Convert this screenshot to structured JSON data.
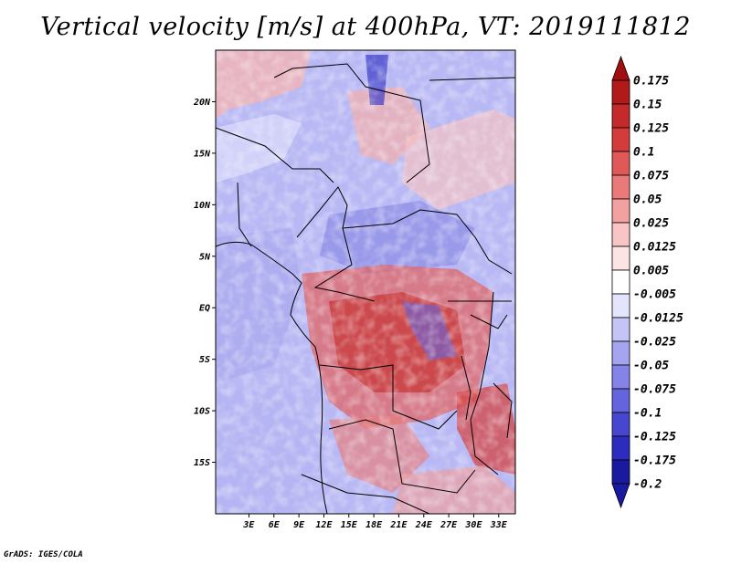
{
  "title": "Vertical velocity [m/s] at 400hPa, VT: 2019111812",
  "footer": "GrADS: IGES/COLA",
  "map": {
    "type": "heatmap",
    "projection": "latlon",
    "lon_range": [
      -1,
      35
    ],
    "lat_range": [
      -20,
      25
    ],
    "y_ticks": [
      {
        "value": 20,
        "label": "20N"
      },
      {
        "value": 15,
        "label": "15N"
      },
      {
        "value": 10,
        "label": "10N"
      },
      {
        "value": 5,
        "label": "5N"
      },
      {
        "value": 0,
        "label": "EQ"
      },
      {
        "value": -5,
        "label": "5S"
      },
      {
        "value": -10,
        "label": "10S"
      },
      {
        "value": -15,
        "label": "15S"
      }
    ],
    "x_ticks": [
      {
        "value": 3,
        "label": "3E"
      },
      {
        "value": 6,
        "label": "6E"
      },
      {
        "value": 9,
        "label": "9E"
      },
      {
        "value": 12,
        "label": "12E"
      },
      {
        "value": 15,
        "label": "15E"
      },
      {
        "value": 18,
        "label": "18E"
      },
      {
        "value": 21,
        "label": "21E"
      },
      {
        "value": 24,
        "label": "24E"
      },
      {
        "value": 27,
        "label": "27E"
      },
      {
        "value": 30,
        "label": "30E"
      },
      {
        "value": 33,
        "label": "33E"
      }
    ]
  },
  "colorbar": {
    "levels": [
      {
        "label": "0.175",
        "color": "#a01010"
      },
      {
        "label": "0.15",
        "color": "#b21a1a"
      },
      {
        "label": "0.125",
        "color": "#c42a2a"
      },
      {
        "label": "0.1",
        "color": "#d43c3c"
      },
      {
        "label": "0.075",
        "color": "#e05858"
      },
      {
        "label": "0.05",
        "color": "#ea7a7a"
      },
      {
        "label": "0.025",
        "color": "#f2a0a0"
      },
      {
        "label": "0.0125",
        "color": "#f8c4c4"
      },
      {
        "label": "0.005",
        "color": "#fce4e4"
      },
      {
        "label": "-0.005",
        "color": "#ffffff"
      },
      {
        "label": "-0.0125",
        "color": "#e4e4fc"
      },
      {
        "label": "-0.025",
        "color": "#c4c4f6"
      },
      {
        "label": "-0.05",
        "color": "#a4a4f0"
      },
      {
        "label": "-0.075",
        "color": "#8484e8"
      },
      {
        "label": "-0.1",
        "color": "#6464de"
      },
      {
        "label": "-0.125",
        "color": "#4646d0"
      },
      {
        "label": "-0.175",
        "color": "#2c2cbe"
      },
      {
        "label": "-0.2",
        "color": "#1a1aa0"
      }
    ],
    "top_color": "#a01010",
    "bottom_color": "#1a1aa0"
  }
}
